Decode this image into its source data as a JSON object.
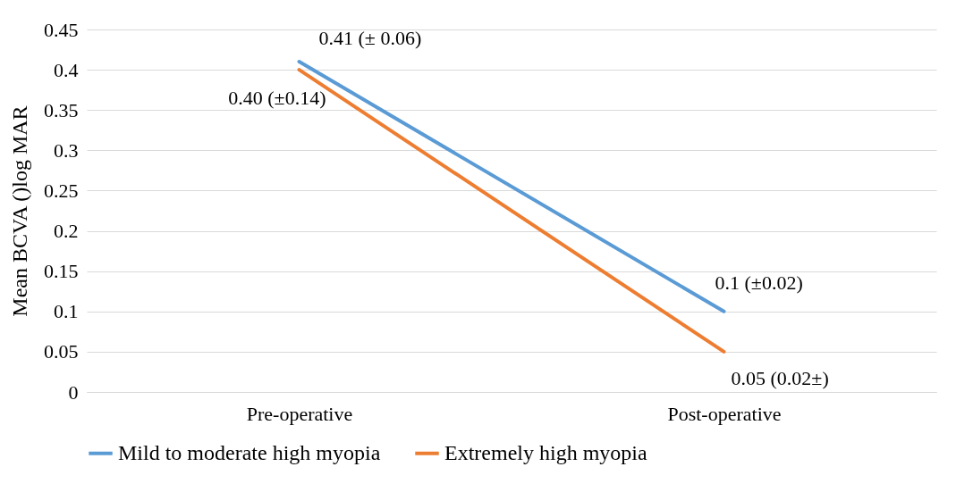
{
  "chart_data": {
    "type": "line",
    "ylabel": "Mean BCVA ()log MAR",
    "categories": [
      "Pre-operative",
      "Post-operative"
    ],
    "series": [
      {
        "name": "Mild to moderate high myopia",
        "color": "#5b9bd5",
        "values": [
          0.41,
          0.1
        ],
        "value_labels": [
          "0.41 (± 0.06)",
          "0.1 (±0.02)"
        ]
      },
      {
        "name": "Extremely high myopia",
        "color": "#ed7d31",
        "values": [
          0.4,
          0.05
        ],
        "value_labels": [
          "0.40 (±0.14)",
          "0.05 (0.02±)"
        ]
      }
    ],
    "ylim": [
      0,
      0.45
    ],
    "yticks": [
      0,
      0.05,
      0.1,
      0.15,
      0.2,
      0.25,
      0.3,
      0.35,
      0.4,
      0.45
    ],
    "grid": "y",
    "legend": "bottom",
    "marker": "none",
    "line_style": "solid"
  }
}
